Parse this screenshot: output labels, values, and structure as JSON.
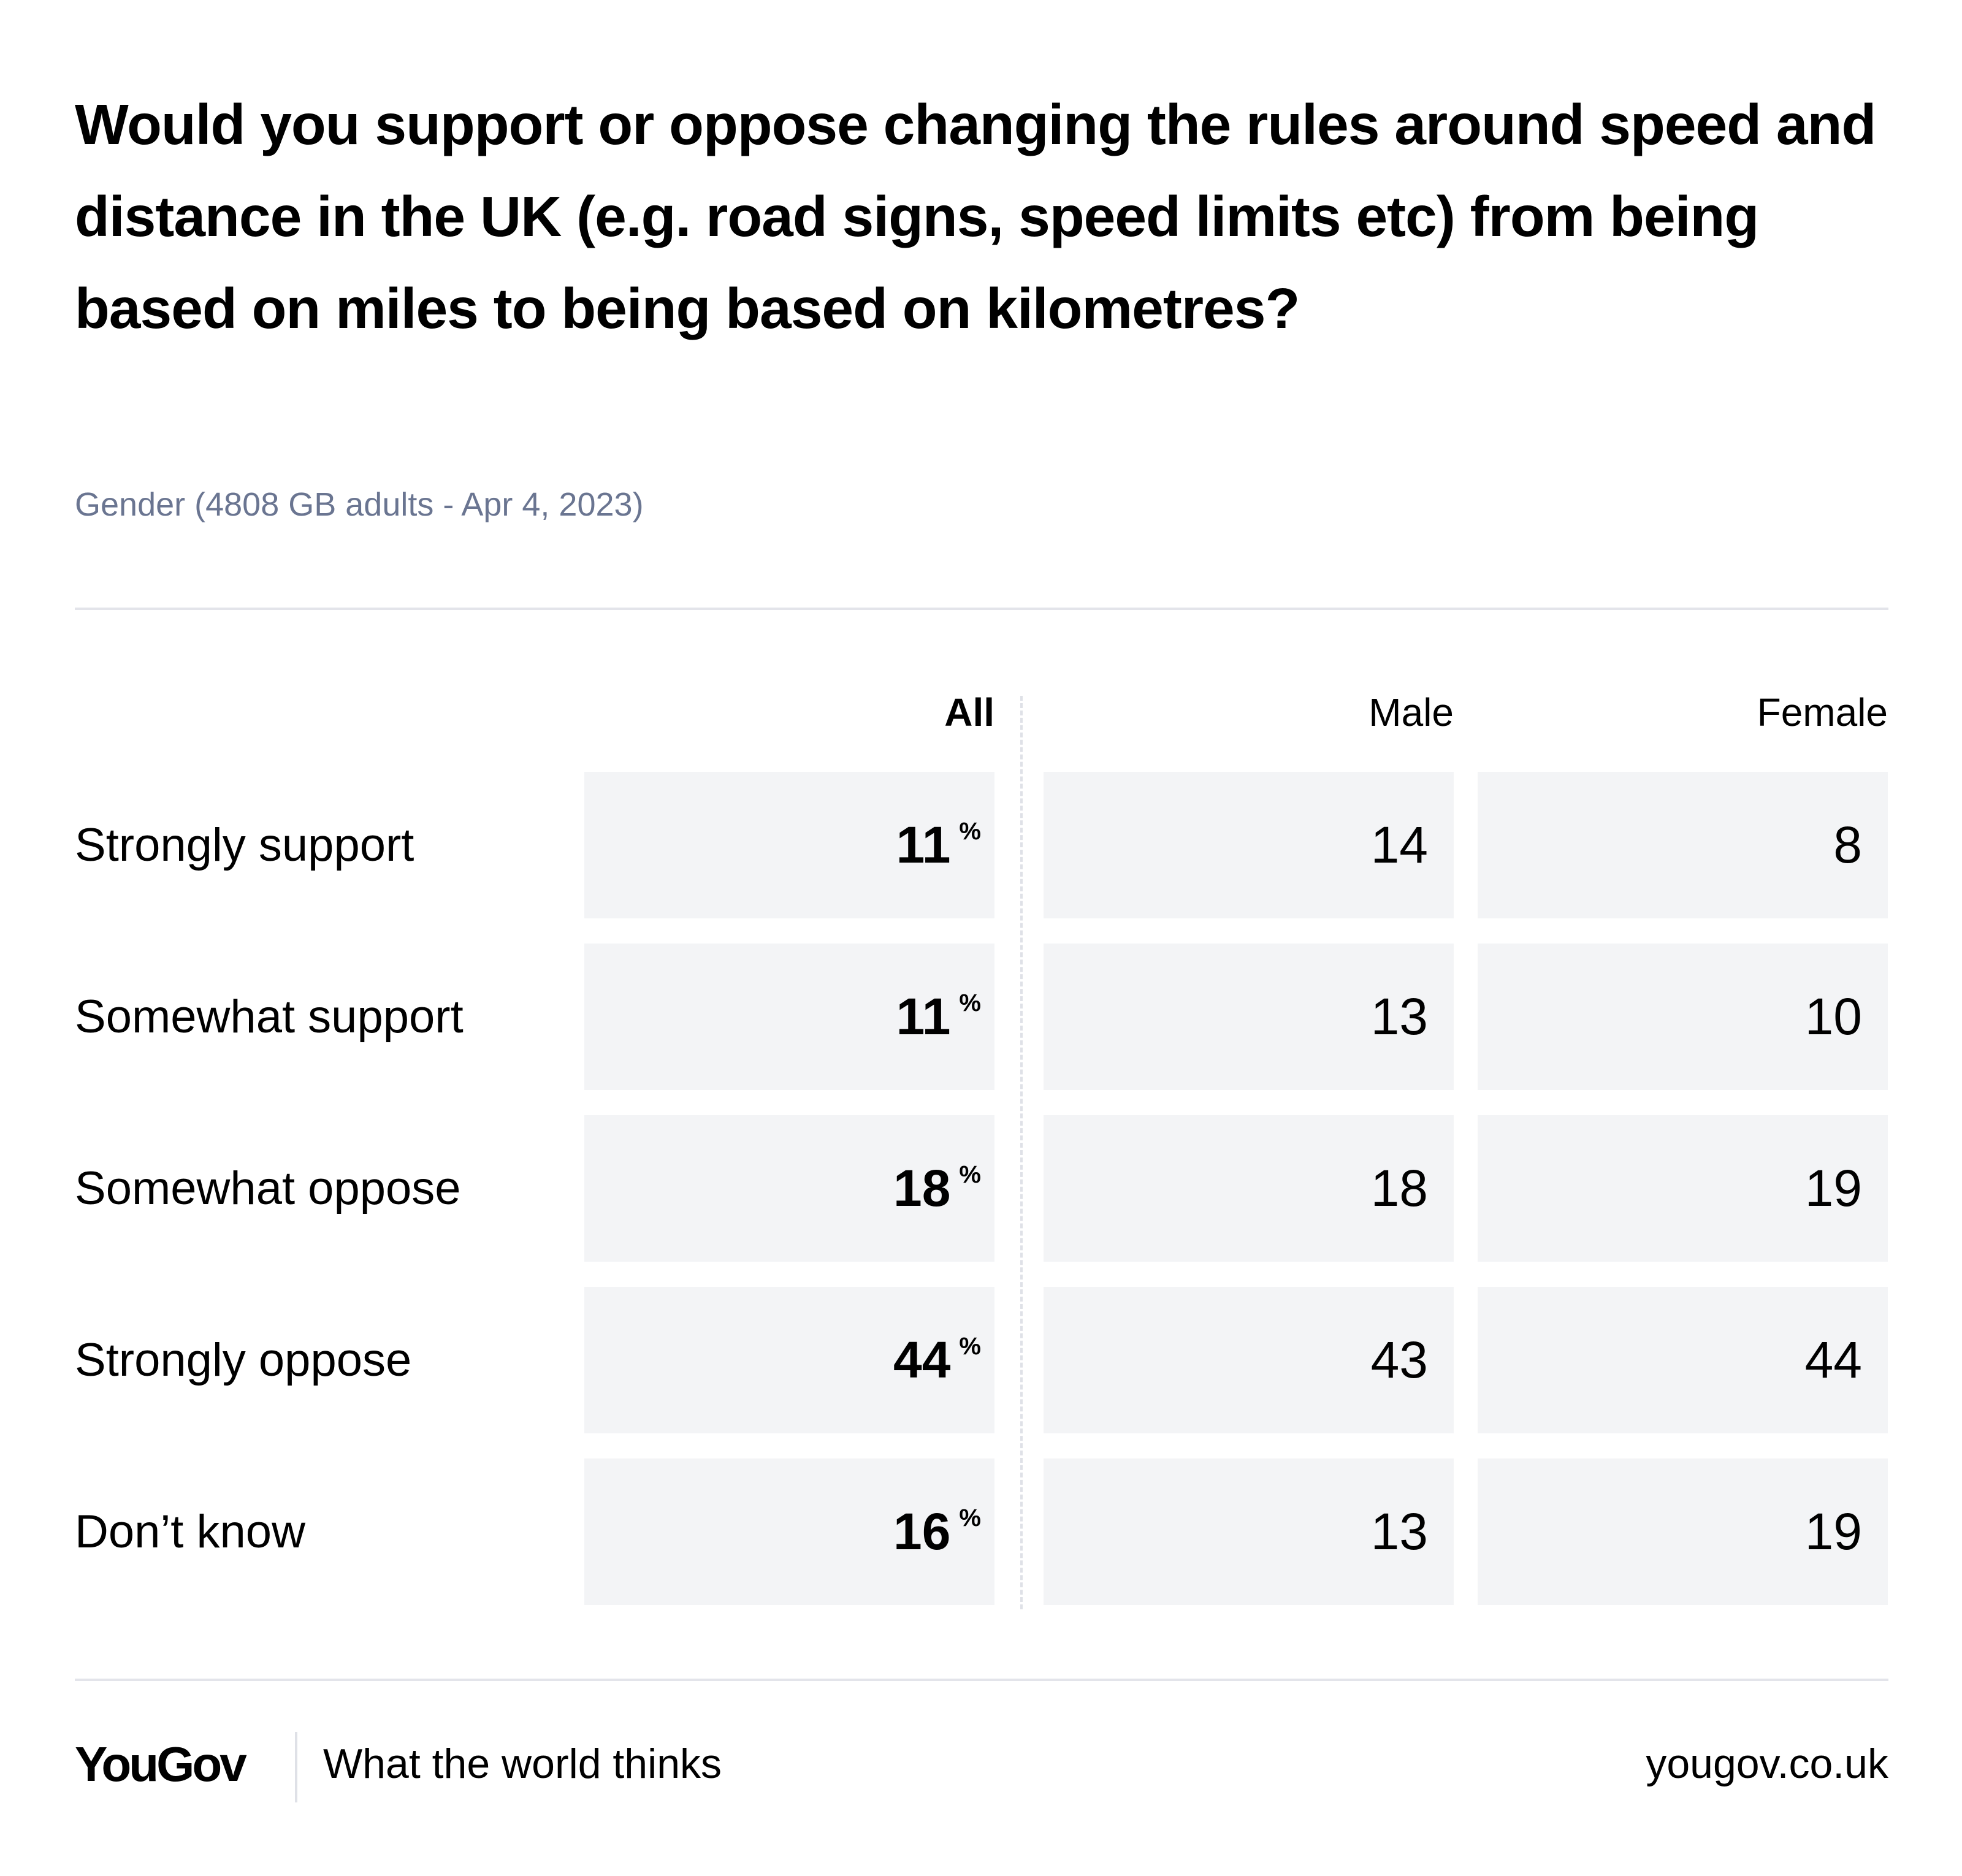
{
  "header": {
    "title": "Would you support or oppose changing the rules around speed and distance in the UK (e.g. road signs, speed limits etc) from being based on miles to being based on kilometres?",
    "subtitle": "Gender (4808 GB adults - Apr 4, 2023)"
  },
  "chart_data": {
    "type": "table",
    "title": "Would you support or oppose changing the rules around speed and distance in the UK (e.g. road signs, speed limits etc) from being based on miles to being based on kilometres?",
    "columns": [
      "All",
      "Male",
      "Female"
    ],
    "unit": "%",
    "rows": [
      {
        "label": "Strongly support",
        "values": [
          11,
          14,
          8
        ]
      },
      {
        "label": "Somewhat support",
        "values": [
          11,
          13,
          10
        ]
      },
      {
        "label": "Somewhat oppose",
        "values": [
          18,
          18,
          19
        ]
      },
      {
        "label": "Strongly oppose",
        "values": [
          44,
          43,
          44
        ]
      },
      {
        "label": "Don’t know",
        "values": [
          16,
          13,
          19
        ]
      }
    ]
  },
  "footer": {
    "logo": "YouGov",
    "tagline": "What the world thinks",
    "site": "yougov.co.uk"
  },
  "colors": {
    "cell_bg": "#f3f4f6",
    "subtitle": "#6a7591",
    "divider": "#e3e4ea"
  }
}
